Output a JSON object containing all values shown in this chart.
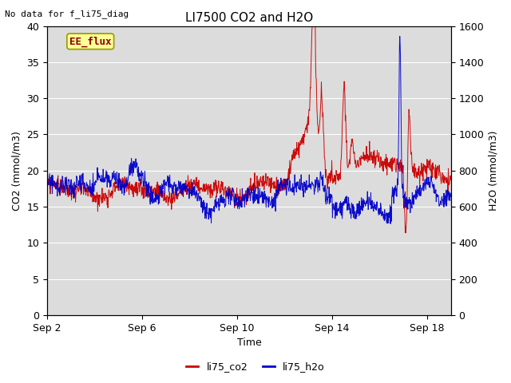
{
  "title": "LI7500 CO2 and H2O",
  "xlabel": "Time",
  "ylabel_left": "CO2 (mmol/m3)",
  "ylabel_right": "H2O (mmol/m3)",
  "no_data_text": "No data for f_li75_diag",
  "ee_flux_label": "EE_flux",
  "ylim_left": [
    0,
    40
  ],
  "ylim_right": [
    0,
    1600
  ],
  "yticks_left": [
    0,
    5,
    10,
    15,
    20,
    25,
    30,
    35,
    40
  ],
  "yticks_right": [
    0,
    200,
    400,
    600,
    800,
    1000,
    1200,
    1400,
    1600
  ],
  "xtick_labels": [
    "Sep 2",
    "Sep 6",
    "Sep 10",
    "Sep 14",
    "Sep 18"
  ],
  "xtick_positions": [
    0,
    4,
    8,
    12,
    16
  ],
  "xlim": [
    0,
    17
  ],
  "bg_color": "#dcdcdc",
  "fig_bg_color": "#ffffff",
  "line_co2_color": "#cc0000",
  "line_h2o_color": "#0000cc",
  "legend_co2": "li75_co2",
  "legend_h2o": "li75_h2o",
  "grid_color": "#ffffff",
  "title_fontsize": 11,
  "label_fontsize": 9,
  "tick_fontsize": 9,
  "legend_fontsize": 9
}
